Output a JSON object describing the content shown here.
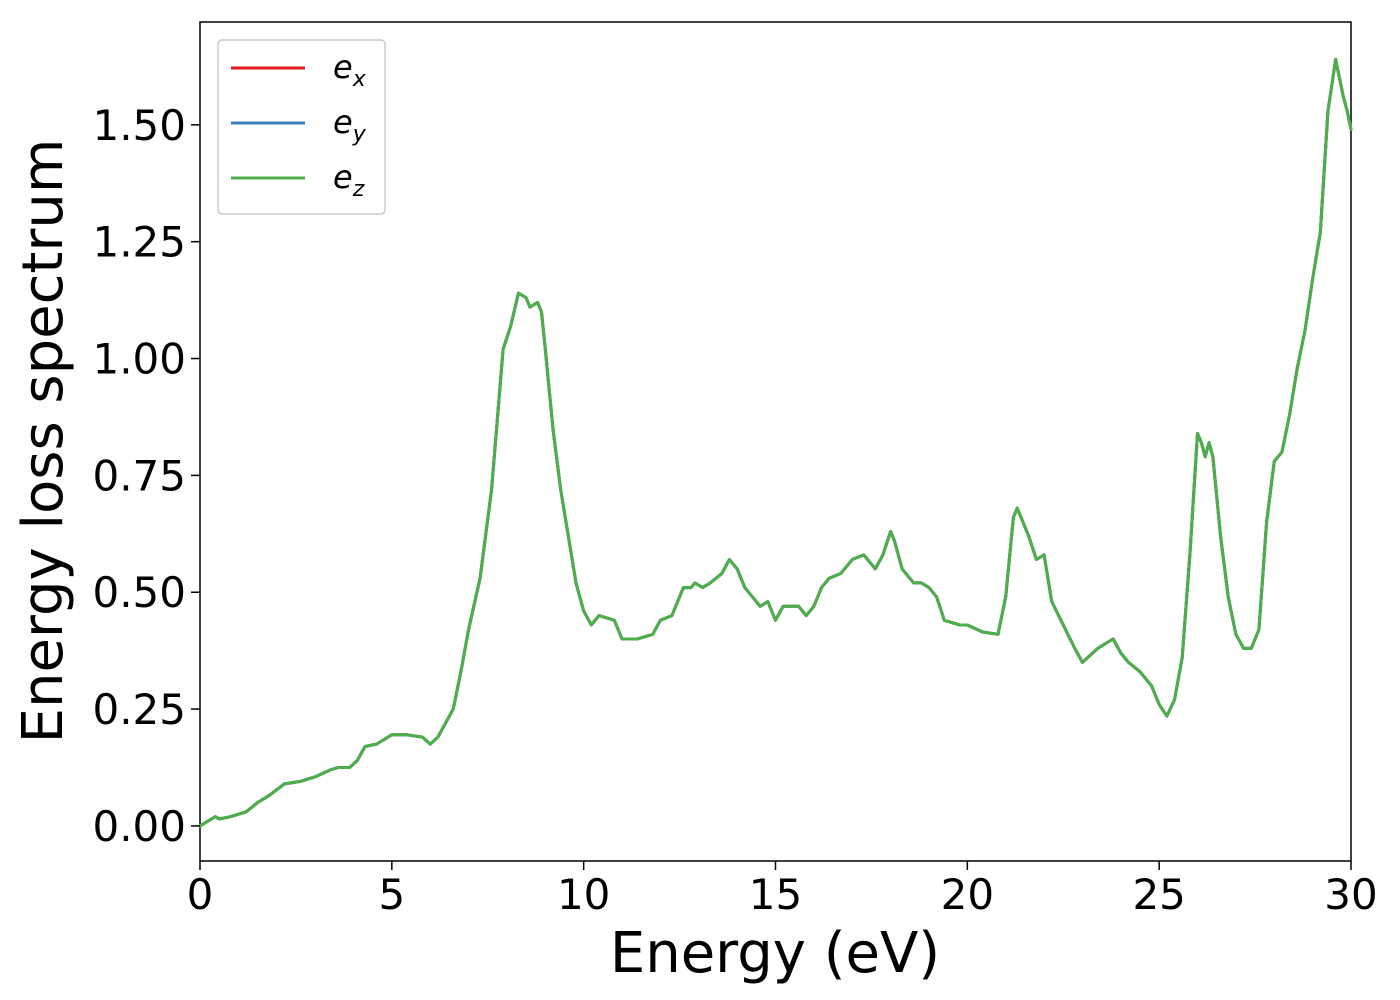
{
  "chart_data": {
    "type": "line",
    "xlabel": "Energy (eV)",
    "ylabel": "Energy loss spectrum",
    "xlim": [
      0,
      30
    ],
    "ylim": [
      -0.075,
      1.72
    ],
    "xticks": [
      0,
      5,
      10,
      15,
      20,
      25,
      30
    ],
    "xtick_labels": [
      "0",
      "5",
      "10",
      "15",
      "20",
      "25",
      "30"
    ],
    "yticks": [
      0,
      0.25,
      0.5,
      0.75,
      1.0,
      1.25,
      1.5
    ],
    "ytick_labels": [
      "0.00",
      "0.25",
      "0.50",
      "0.75",
      "1.00",
      "1.25",
      "1.50"
    ],
    "grid": false,
    "legend_position": "top-left",
    "x": [
      0,
      0.2,
      0.4,
      0.5,
      0.8,
      1.2,
      1.5,
      1.8,
      2.2,
      2.6,
      3.0,
      3.4,
      3.6,
      3.9,
      4.1,
      4.3,
      4.6,
      5.0,
      5.4,
      5.8,
      6.0,
      6.2,
      6.4,
      6.6,
      6.8,
      7.0,
      7.3,
      7.6,
      7.9,
      8.1,
      8.3,
      8.5,
      8.6,
      8.8,
      8.9,
      9.0,
      9.2,
      9.4,
      9.6,
      9.8,
      10.0,
      10.2,
      10.4,
      10.8,
      11.0,
      11.4,
      11.8,
      12.0,
      12.3,
      12.6,
      12.8,
      12.9,
      13.1,
      13.3,
      13.6,
      13.8,
      14.0,
      14.2,
      14.4,
      14.6,
      14.8,
      15.0,
      15.2,
      15.4,
      15.6,
      15.8,
      16.0,
      16.2,
      16.4,
      16.7,
      17.0,
      17.3,
      17.6,
      17.8,
      18.0,
      18.1,
      18.3,
      18.6,
      18.8,
      19.0,
      19.2,
      19.4,
      19.8,
      20.0,
      20.4,
      20.8,
      21.0,
      21.2,
      21.3,
      21.6,
      21.8,
      22.0,
      22.2,
      22.5,
      22.8,
      23.0,
      23.4,
      23.6,
      23.8,
      24.0,
      24.2,
      24.5,
      24.8,
      25.0,
      25.2,
      25.4,
      25.6,
      25.8,
      26.0,
      26.1,
      26.2,
      26.3,
      26.4,
      26.6,
      26.8,
      27.0,
      27.2,
      27.4,
      27.6,
      27.8,
      28.0,
      28.2,
      28.4,
      28.6,
      28.8,
      29.0,
      29.2,
      29.4,
      29.6,
      29.8,
      29.9,
      30.0
    ],
    "series": [
      {
        "name": "e_x",
        "color": "#e41a1c"
      },
      {
        "name": "e_y",
        "color": "#377eb8"
      },
      {
        "name": "e_z",
        "color": "#4daf4a"
      }
    ],
    "values": [
      0.0,
      0.01,
      0.02,
      0.015,
      0.02,
      0.03,
      0.05,
      0.065,
      0.09,
      0.095,
      0.105,
      0.12,
      0.125,
      0.125,
      0.14,
      0.17,
      0.175,
      0.195,
      0.195,
      0.19,
      0.175,
      0.19,
      0.22,
      0.25,
      0.33,
      0.42,
      0.53,
      0.72,
      1.02,
      1.07,
      1.14,
      1.13,
      1.11,
      1.12,
      1.1,
      1.02,
      0.85,
      0.72,
      0.62,
      0.52,
      0.46,
      0.43,
      0.45,
      0.44,
      0.4,
      0.4,
      0.41,
      0.44,
      0.45,
      0.51,
      0.51,
      0.52,
      0.51,
      0.52,
      0.54,
      0.57,
      0.55,
      0.51,
      0.49,
      0.47,
      0.48,
      0.44,
      0.47,
      0.47,
      0.47,
      0.45,
      0.47,
      0.51,
      0.53,
      0.54,
      0.57,
      0.58,
      0.55,
      0.58,
      0.63,
      0.61,
      0.55,
      0.52,
      0.52,
      0.51,
      0.49,
      0.44,
      0.43,
      0.43,
      0.415,
      0.41,
      0.49,
      0.66,
      0.68,
      0.62,
      0.57,
      0.58,
      0.48,
      0.43,
      0.38,
      0.35,
      0.38,
      0.39,
      0.4,
      0.37,
      0.35,
      0.33,
      0.3,
      0.26,
      0.235,
      0.27,
      0.36,
      0.58,
      0.84,
      0.82,
      0.79,
      0.82,
      0.79,
      0.62,
      0.49,
      0.41,
      0.38,
      0.38,
      0.42,
      0.65,
      0.78,
      0.8,
      0.88,
      0.98,
      1.06,
      1.17,
      1.27,
      1.53,
      1.64,
      1.56,
      1.53,
      1.49
    ]
  },
  "legend": {
    "items": [
      {
        "base": "e",
        "sub": "x",
        "color": "#e41a1c"
      },
      {
        "base": "e",
        "sub": "y",
        "color": "#377eb8"
      },
      {
        "base": "e",
        "sub": "z",
        "color": "#4daf4a"
      }
    ]
  }
}
